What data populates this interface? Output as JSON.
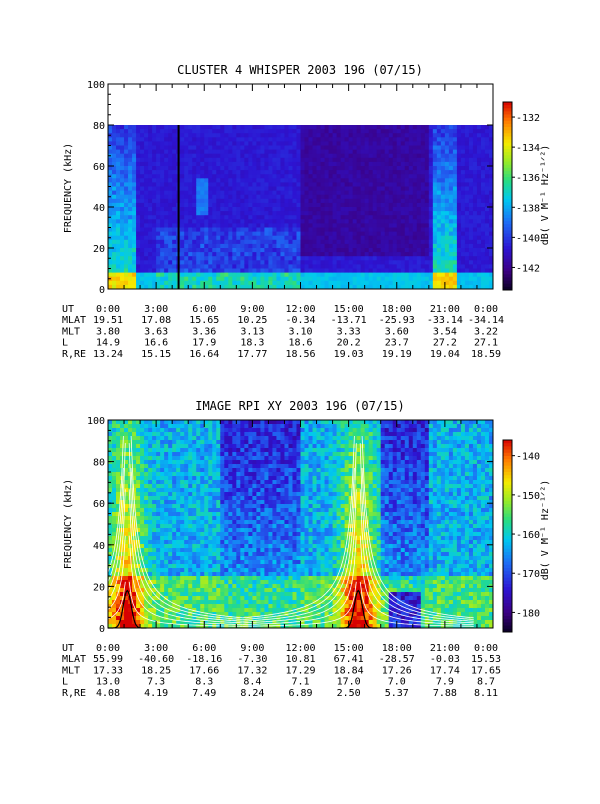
{
  "panels": [
    {
      "title": "CLUSTER 4 WHISPER 2003 196 (07/15)",
      "ylabel": "FREQUENCY (kHz)",
      "colorbar_label": "dB( V M⁻¹ Hz⁻¹ᐟ²)",
      "colorbar_ticks": [
        "-132",
        "-134",
        "-136",
        "-138",
        "-140",
        "-142"
      ]
    },
    {
      "title": "IMAGE RPI XY 2003 196 (07/15)",
      "ylabel": "FREQUENCY (kHz)",
      "colorbar_label": "dB( V M⁻¹ Hz⁻¹ᐟ²)",
      "colorbar_ticks": [
        "-140",
        "-150",
        "-160",
        "-170",
        "-180"
      ]
    }
  ],
  "ephemeris": [
    {
      "rows": [
        {
          "label": "UT",
          "values": [
            "0:00",
            "3:00",
            "6:00",
            "9:00",
            "12:00",
            "15:00",
            "18:00",
            "21:00",
            "0:00"
          ]
        },
        {
          "label": "MLAT",
          "values": [
            "19.51",
            "17.08",
            "15.65",
            "10.25",
            "-0.34",
            "-13.71",
            "-25.93",
            "-33.14",
            "-34.14"
          ]
        },
        {
          "label": "MLT",
          "values": [
            "3.80",
            "3.63",
            "3.36",
            "3.13",
            "3.10",
            "3.33",
            "3.60",
            "3.54",
            "3.22"
          ]
        },
        {
          "label": "L",
          "values": [
            "14.9",
            "16.6",
            "17.9",
            "18.3",
            "18.6",
            "20.2",
            "23.7",
            "27.2",
            "27.1"
          ]
        },
        {
          "label": "R,RE",
          "values": [
            "13.24",
            "15.15",
            "16.64",
            "17.77",
            "18.56",
            "19.03",
            "19.19",
            "19.04",
            "18.59"
          ]
        }
      ]
    },
    {
      "rows": [
        {
          "label": "UT",
          "values": [
            "0:00",
            "3:00",
            "6:00",
            "9:00",
            "12:00",
            "15:00",
            "18:00",
            "21:00",
            "0:00"
          ]
        },
        {
          "label": "MLAT",
          "values": [
            "55.99",
            "-40.60",
            "-18.16",
            "-7.30",
            "10.81",
            "67.41",
            "-28.57",
            "-0.03",
            "15.53"
          ]
        },
        {
          "label": "MLT",
          "values": [
            "17.33",
            "18.25",
            "17.66",
            "17.32",
            "17.29",
            "18.84",
            "17.26",
            "17.74",
            "17.65"
          ]
        },
        {
          "label": "L",
          "values": [
            "13.0",
            "7.3",
            "8.3",
            "8.4",
            "7.1",
            "17.0",
            "7.0",
            "7.9",
            "8.7"
          ]
        },
        {
          "label": "R,RE",
          "values": [
            "4.08",
            "4.19",
            "7.49",
            "8.24",
            "6.89",
            "2.50",
            "5.37",
            "7.88",
            "8.11"
          ]
        }
      ]
    }
  ],
  "chart_data": [
    {
      "type": "heatmap",
      "title": "CLUSTER 4 WHISPER 2003 196 (07/15)",
      "ylabel": "FREQUENCY (kHz)",
      "xlabel": "UT",
      "x_range_hours": [
        0,
        24
      ],
      "ylim": [
        0,
        100
      ],
      "y_ticks": [
        0,
        20,
        40,
        60,
        80,
        100
      ],
      "data_ceiling_khz": 80,
      "color_range_db": [
        -143.5,
        -131
      ],
      "colorbar_ticks": [
        -132,
        -134,
        -136,
        -138,
        -140,
        -142
      ],
      "colormap": "rainbow (purple=low, red=high)",
      "features": [
        {
          "name": "broadband emission",
          "ut_range": [
            0,
            1.5
          ],
          "level_db": -139
        },
        {
          "name": "data gap",
          "ut": 4.4
        },
        {
          "name": "broadband emission",
          "ut_range": [
            20.5,
            21.5
          ],
          "level_db": -138
        },
        {
          "name": "continuous low-frequency band",
          "freq_range_khz": [
            0,
            8
          ],
          "level_db": -139
        }
      ]
    },
    {
      "type": "heatmap",
      "title": "IMAGE RPI XY 2003 196 (07/15)",
      "ylabel": "FREQUENCY (kHz)",
      "xlabel": "UT",
      "x_range_hours": [
        0,
        24
      ],
      "ylim": [
        0,
        100
      ],
      "y_ticks": [
        0,
        20,
        40,
        60,
        80,
        100
      ],
      "color_range_db": [
        -185,
        -136
      ],
      "colorbar_ticks": [
        -140,
        -150,
        -160,
        -170,
        -180
      ],
      "colormap": "rainbow (purple=low, red=high)",
      "overlays": [
        {
          "name": "fpe peak",
          "ut_peak": 1.2,
          "freq_peak_khz": 18
        },
        {
          "name": "fpe peak",
          "ut_peak": 15.6,
          "freq_peak_khz": 18
        },
        {
          "name": "gyrofrequency harmonics",
          "ut_centers": [
            1.2,
            15.6
          ],
          "curves": 6
        }
      ]
    }
  ]
}
